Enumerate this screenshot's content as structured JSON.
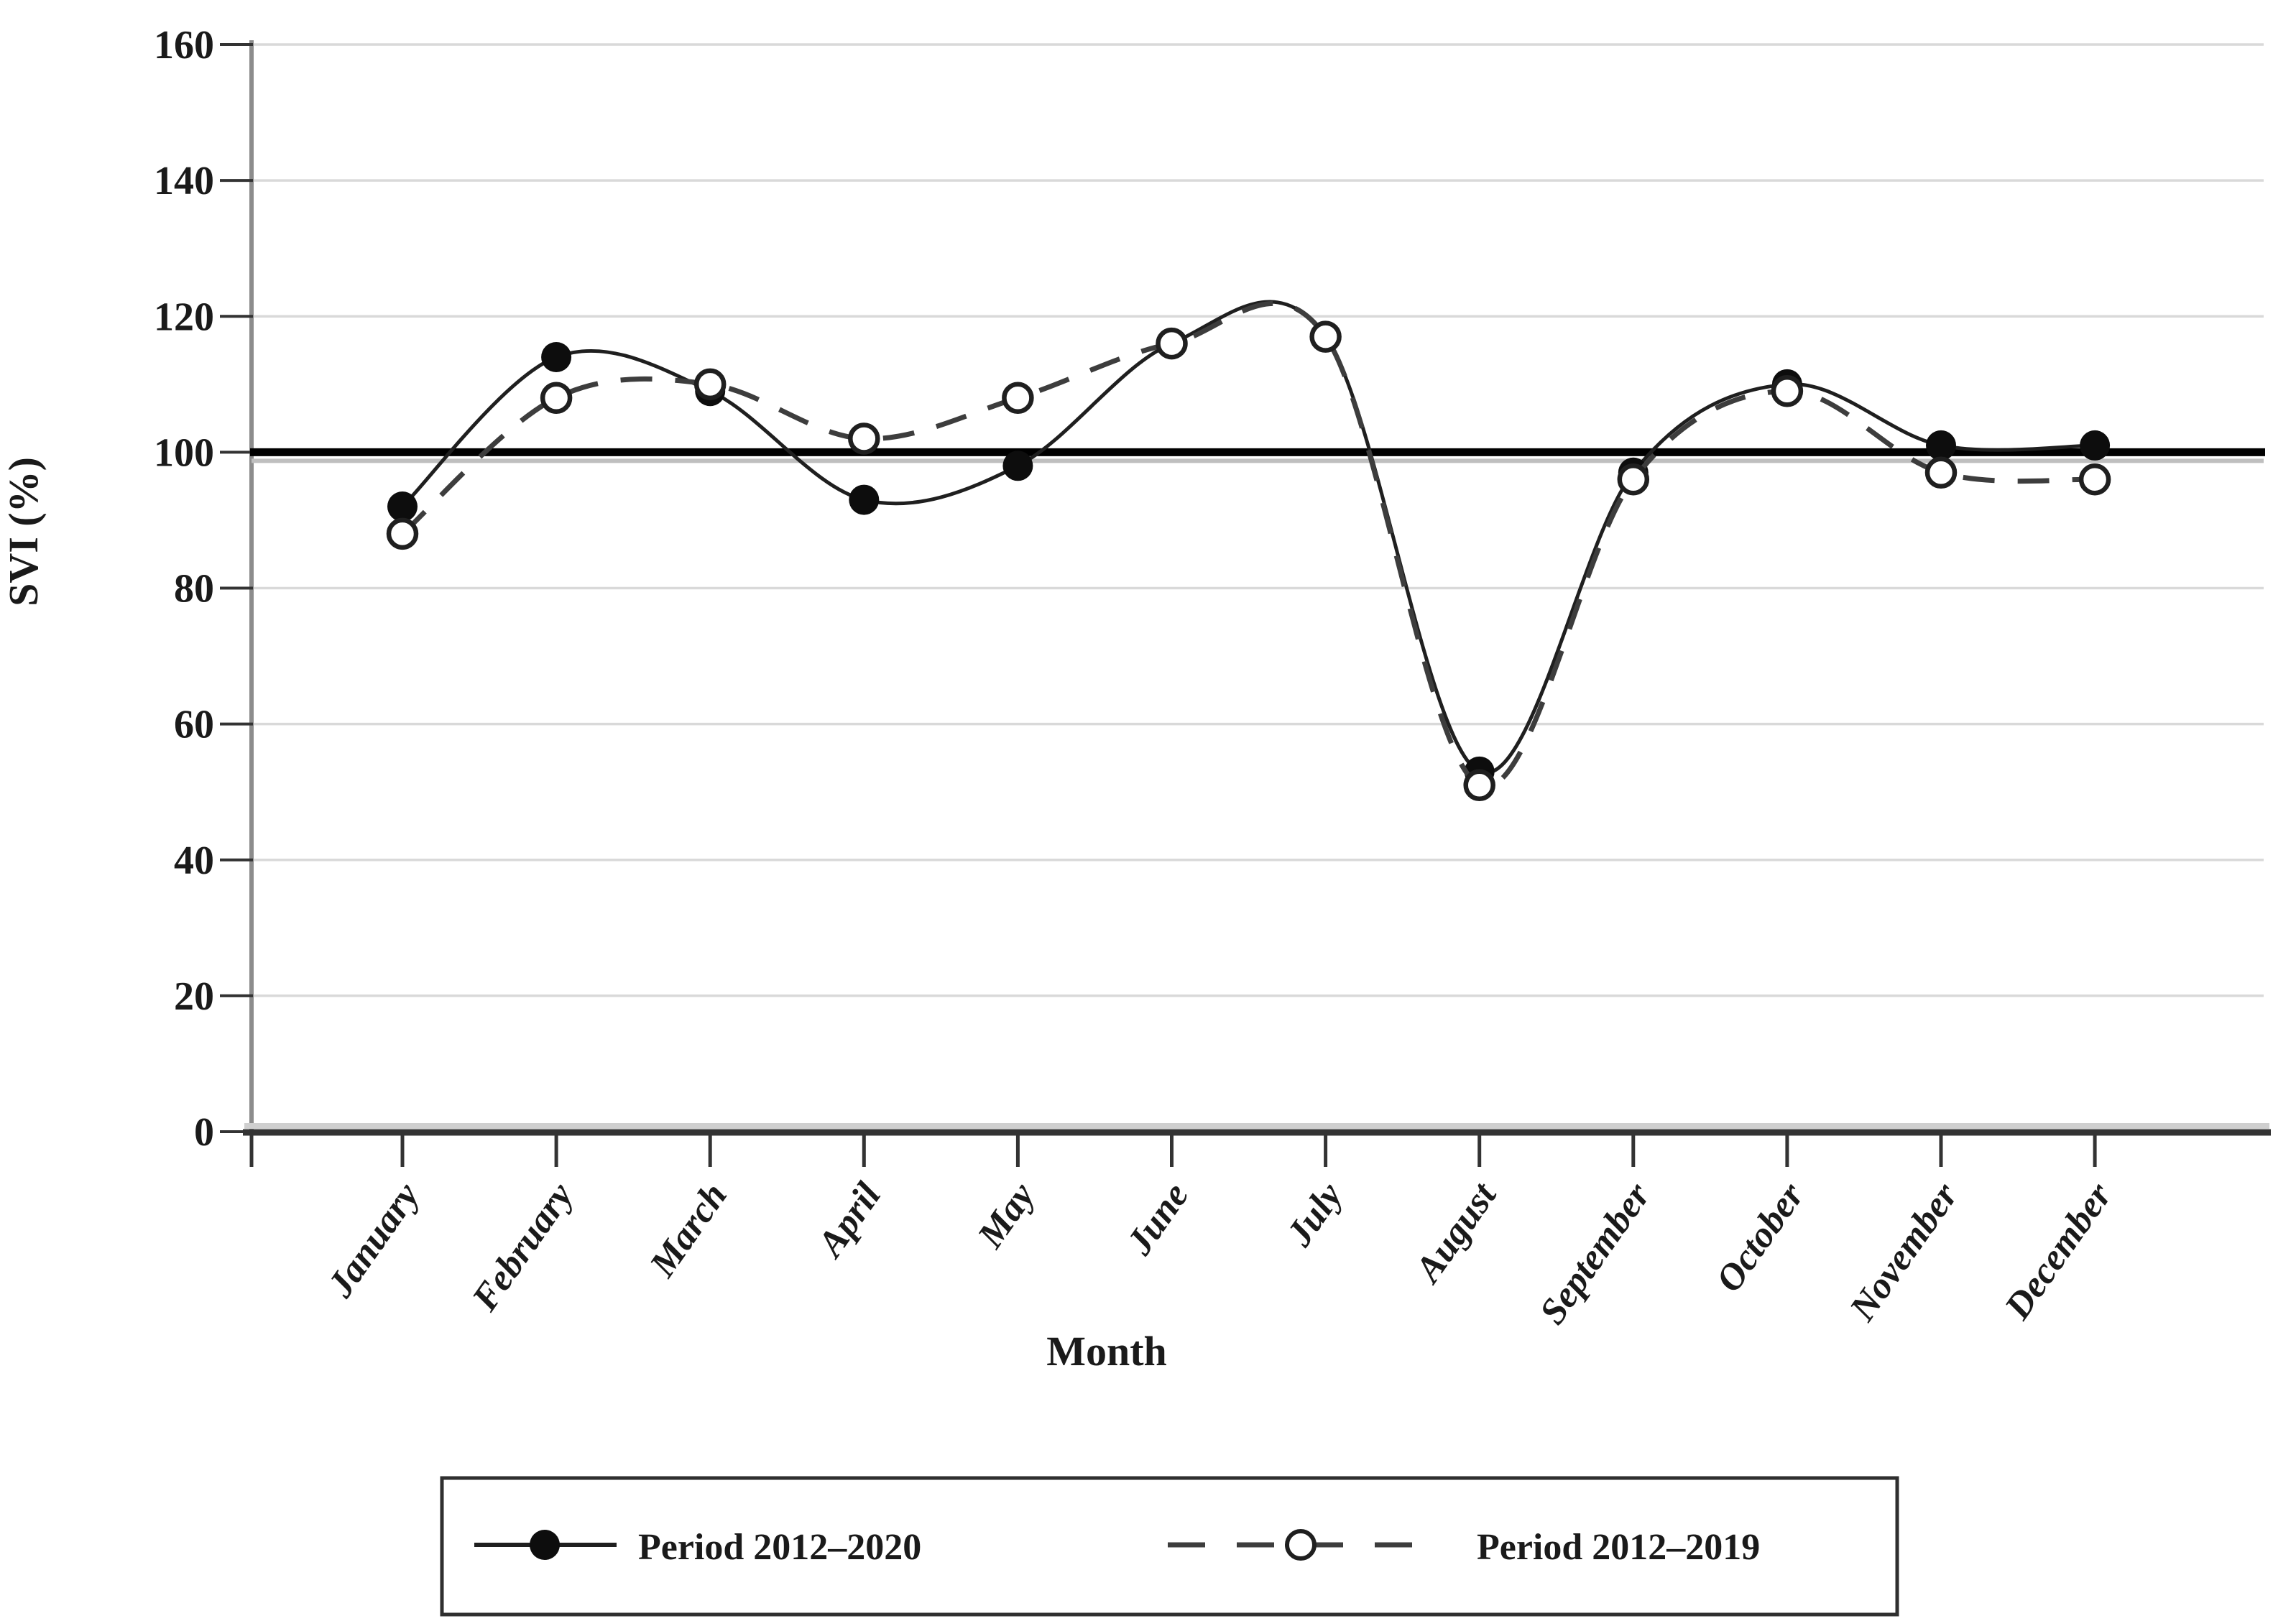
{
  "chart_data": {
    "type": "line",
    "title": "",
    "xlabel": "Month",
    "ylabel": "SVI (%)",
    "ylim": [
      0,
      160
    ],
    "yticks": [
      0,
      20,
      40,
      60,
      80,
      100,
      120,
      140,
      160
    ],
    "grid": true,
    "reference_line_y": 100,
    "legend_position": "bottom",
    "categories": [
      "January",
      "February",
      "March",
      "April",
      "May",
      "June",
      "July",
      "August",
      "September",
      "October",
      "November",
      "December"
    ],
    "series": [
      {
        "name": "Period 2012–2020",
        "line": "solid",
        "marker": "filled-circle",
        "color": "#1f1f1f",
        "values": [
          92,
          114,
          109,
          93,
          98,
          116,
          117,
          53,
          97,
          110,
          101,
          101
        ]
      },
      {
        "name": "Period 2012–2019",
        "line": "dashed",
        "marker": "open-circle",
        "color": "#3d3d3d",
        "values": [
          88,
          108,
          110,
          102,
          108,
          116,
          117,
          51,
          96,
          109,
          97,
          96
        ]
      }
    ]
  },
  "colors": {
    "background": "#ffffff",
    "grid": "#d9d9d9",
    "axis_dark": "#333333",
    "axis_light": "#cfcfcf",
    "y_axis": "#8c8c8c",
    "reference_line": "#000000",
    "reference_shadow": "#bfbfbf",
    "text": "#1a1a1a",
    "marker_fill": "#0d0d0d"
  }
}
